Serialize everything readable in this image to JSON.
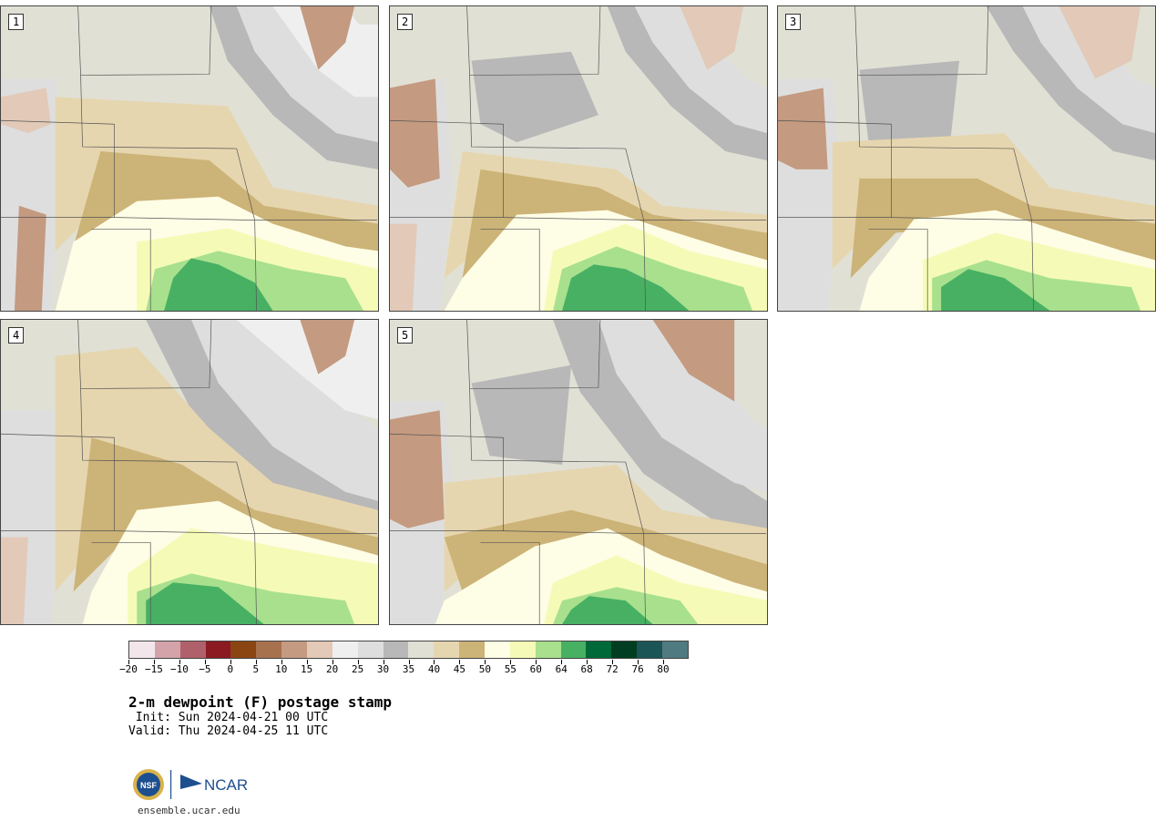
{
  "panels": [
    {
      "label": "1"
    },
    {
      "label": "2"
    },
    {
      "label": "3"
    },
    {
      "label": "4"
    },
    {
      "label": "5"
    }
  ],
  "colorbar": {
    "colors": [
      "#f2e6ea",
      "#d4a3aa",
      "#b0606a",
      "#8b1a22",
      "#8b4513",
      "#a8714e",
      "#c49a80",
      "#e2c9b8",
      "#efefef",
      "#dedede",
      "#b8b8b8",
      "#e1e0d5",
      "#e6d6af",
      "#ccb377",
      "#fefde6",
      "#f5fbb6",
      "#a8e08e",
      "#48b063",
      "#00693a",
      "#003d21",
      "#1b5556",
      "#4f7a80"
    ],
    "tick_labels": [
      "−20",
      "−15",
      "−10",
      "−5",
      "0",
      "5",
      "10",
      "15",
      "20",
      "25",
      "30",
      "35",
      "40",
      "45",
      "50",
      "55",
      "60",
      "64",
      "68",
      "72",
      "76",
      "80"
    ]
  },
  "title": "2-m dewpoint (F) postage stamp",
  "init": " Init: Sun 2024-04-21 00 UTC",
  "valid": "Valid: Thu 2024-04-25 11 UTC",
  "site": "ensemble.ucar.edu",
  "logo_text": "NCAR"
}
